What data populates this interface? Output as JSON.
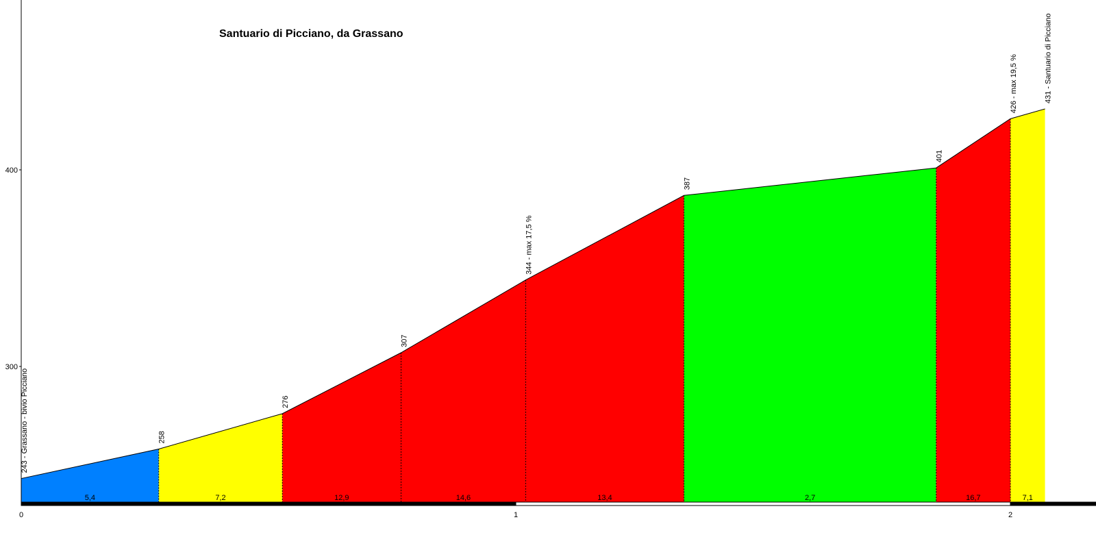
{
  "chart_data": {
    "type": "area",
    "title": "Santuario di Picciano, da Grassano",
    "xlabel": "",
    "ylabel": "",
    "xlim": [
      0,
      2.25
    ],
    "ylim": [
      231,
      485
    ],
    "x_ticks": [
      {
        "value": 0,
        "label": "0"
      },
      {
        "value": 1,
        "label": "1"
      },
      {
        "value": 2,
        "label": "2"
      }
    ],
    "y_ticks": [
      {
        "value": 300,
        "label": "300"
      },
      {
        "value": 400,
        "label": "400"
      }
    ],
    "grid": false,
    "points": [
      {
        "x": 0.0,
        "y": 243,
        "label": "243 - Grassano - bivio Picciano"
      },
      {
        "x": 0.278,
        "y": 258,
        "label": "258"
      },
      {
        "x": 0.528,
        "y": 276,
        "label": "276"
      },
      {
        "x": 0.768,
        "y": 307,
        "label": "307"
      },
      {
        "x": 1.02,
        "y": 344,
        "label": "344 - max 17,5 %"
      },
      {
        "x": 1.34,
        "y": 387,
        "label": "387"
      },
      {
        "x": 1.85,
        "y": 401,
        "label": "401"
      },
      {
        "x": 2.0,
        "y": 426,
        "label": "426 - max 19,5 %"
      },
      {
        "x": 2.07,
        "y": 431,
        "label": "431 - Santuario di Picciano"
      }
    ],
    "segments": [
      {
        "gradient": "5,4",
        "color": "#0080ff"
      },
      {
        "gradient": "7,2",
        "color": "#ffff00"
      },
      {
        "gradient": "12,9",
        "color": "#ff0000"
      },
      {
        "gradient": "14,6",
        "color": "#ff0000"
      },
      {
        "gradient": "13,4",
        "color": "#ff0000"
      },
      {
        "gradient": "2,7",
        "color": "#00ff00"
      },
      {
        "gradient": "16,7",
        "color": "#ff0000"
      },
      {
        "gradient": "7,1",
        "color": "#ffff00"
      }
    ]
  }
}
